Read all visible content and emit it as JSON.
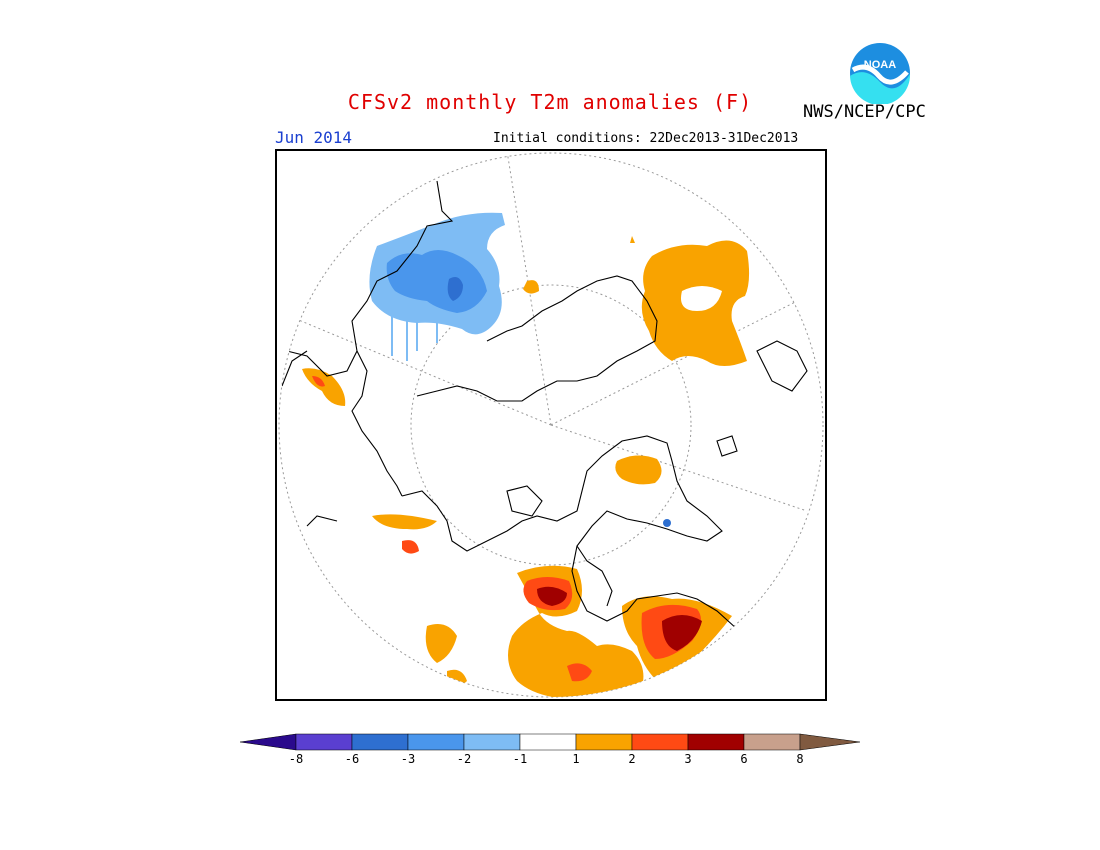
{
  "header": {
    "title": "CFSv2 monthly T2m anomalies (F)",
    "valid_month": "Jun 2014",
    "initial_conditions": "Initial conditions: 22Dec2013-31Dec2013",
    "organization": "NWS/NCEP/CPC",
    "logo_text": "NOAA"
  },
  "colorbar": {
    "tick_labels": [
      "-8",
      "-6",
      "-3",
      "-2",
      "-1",
      "1",
      "2",
      "3",
      "6",
      "8"
    ],
    "colors": [
      "#2a0a8c",
      "#5a3fd0",
      "#2e6fd0",
      "#4a96ec",
      "#7ebcf4",
      "#ffffff",
      "#f9a300",
      "#ff4a14",
      "#a00000",
      "#c8a08c",
      "#805a40"
    ]
  }
}
